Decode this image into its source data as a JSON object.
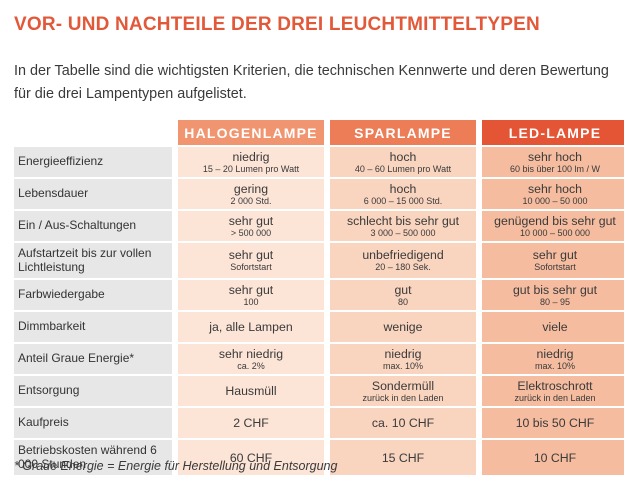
{
  "title": "VOR- UND NACHTEILE DER DREI LEUCHTMITTELTYPEN",
  "intro": "In der Tabelle sind die wichtigsten Kriterien, die technischen Kennwerte und deren Bewertung für die drei Lampentypen aufgelistet.",
  "headers": [
    "HALOGENLAMPE",
    "SPARLAMPE",
    "LED-LAMPE"
  ],
  "colors": {
    "title": "#e2593a",
    "halogen": "#f0956f",
    "spar": "#ec7d56",
    "led": "#e45535"
  },
  "rows": [
    {
      "criterion": "Energieeffizienz",
      "halogen": {
        "main": "niedrig",
        "sub": "15 – 20 Lumen pro Watt"
      },
      "spar": {
        "main": "hoch",
        "sub": "40 – 60 Lumen pro Watt"
      },
      "led": {
        "main": "sehr hoch",
        "sub": "60 bis über 100 lm / W"
      }
    },
    {
      "criterion": "Lebensdauer",
      "halogen": {
        "main": "gering",
        "sub": "2 000 Std."
      },
      "spar": {
        "main": "hoch",
        "sub": "6 000 – 15 000 Std."
      },
      "led": {
        "main": "sehr hoch",
        "sub": "10 000 – 50 000"
      }
    },
    {
      "criterion": "Ein / Aus-Schaltungen",
      "halogen": {
        "main": "sehr gut",
        "sub": "> 500 000"
      },
      "spar": {
        "main": "schlecht bis sehr gut",
        "sub": "3 000 – 500 000"
      },
      "led": {
        "main": "genügend bis sehr gut",
        "sub": "10 000 – 500 000"
      }
    },
    {
      "criterion": "Aufstartzeit bis zur vollen Lichtleistung",
      "halogen": {
        "main": "sehr gut",
        "sub": "Sofortstart"
      },
      "spar": {
        "main": "unbefriedigend",
        "sub": "20 – 180 Sek."
      },
      "led": {
        "main": "sehr gut",
        "sub": "Sofortstart"
      }
    },
    {
      "criterion": "Farbwiedergabe",
      "halogen": {
        "main": "sehr gut",
        "sub": "100"
      },
      "spar": {
        "main": "gut",
        "sub": "80"
      },
      "led": {
        "main": "gut bis sehr gut",
        "sub": "80 – 95"
      }
    },
    {
      "criterion": "Dimmbarkeit",
      "halogen": {
        "main": "ja, alle Lampen",
        "sub": ""
      },
      "spar": {
        "main": "wenige",
        "sub": ""
      },
      "led": {
        "main": "viele",
        "sub": ""
      }
    },
    {
      "criterion": "Anteil Graue Energie*",
      "halogen": {
        "main": "sehr niedrig",
        "sub": "ca. 2%"
      },
      "spar": {
        "main": "niedrig",
        "sub": "max. 10%"
      },
      "led": {
        "main": "niedrig",
        "sub": "max. 10%"
      }
    },
    {
      "criterion": "Entsorgung",
      "halogen": {
        "main": "Hausmüll",
        "sub": ""
      },
      "spar": {
        "main": "Sondermüll",
        "sub": "zurück in den Laden"
      },
      "led": {
        "main": "Elektroschrott",
        "sub": "zurück in den Laden"
      }
    },
    {
      "criterion": "Kaufpreis",
      "halogen": {
        "main": "2 CHF",
        "sub": ""
      },
      "spar": {
        "main": "ca. 10 CHF",
        "sub": ""
      },
      "led": {
        "main": "10 bis 50 CHF",
        "sub": ""
      }
    },
    {
      "criterion": "Betriebskosten während 6 000 Stunden",
      "halogen": {
        "main": "60 CHF",
        "sub": ""
      },
      "spar": {
        "main": "15 CHF",
        "sub": ""
      },
      "led": {
        "main": "10 CHF",
        "sub": ""
      }
    }
  ],
  "footnote": "* Graue Energie = Energie für Herstellung und Entsorgung"
}
